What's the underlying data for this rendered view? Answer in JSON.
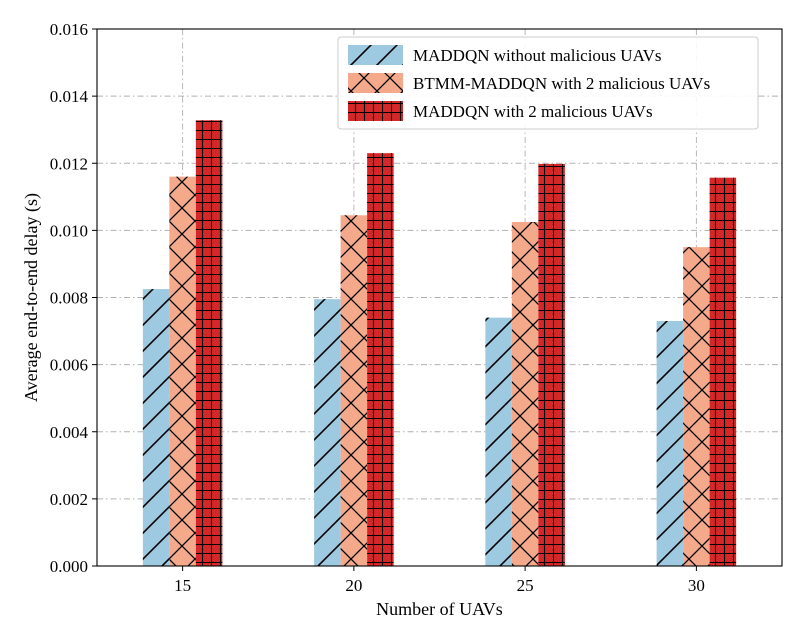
{
  "chart_data": {
    "type": "bar",
    "title": "",
    "xlabel": "Number of UAVs",
    "ylabel": "Average end-to-end delay (s)",
    "categories": [
      "15",
      "20",
      "25",
      "30"
    ],
    "ylim": [
      0,
      0.016
    ],
    "yticks": [
      "0.000",
      "0.002",
      "0.004",
      "0.006",
      "0.008",
      "0.010",
      "0.012",
      "0.014",
      "0.016"
    ],
    "grid": true,
    "legend_position": "top-right",
    "series": [
      {
        "name": "MADDQN without malicious UAVs",
        "values": [
          0.00825,
          0.00795,
          0.0074,
          0.0073
        ],
        "color": "#9ecae1",
        "hatch": "diagonal"
      },
      {
        "name": "BTMM-MADDQN with 2 malicious UAVs",
        "values": [
          0.0116,
          0.01045,
          0.01025,
          0.0095
        ],
        "color": "#f4a98a",
        "hatch": "cross"
      },
      {
        "name": "MADDQN with 2 malicious UAVs",
        "values": [
          0.01328,
          0.0123,
          0.01198,
          0.01157
        ],
        "color": "#d62728",
        "hatch": "grid"
      }
    ]
  }
}
